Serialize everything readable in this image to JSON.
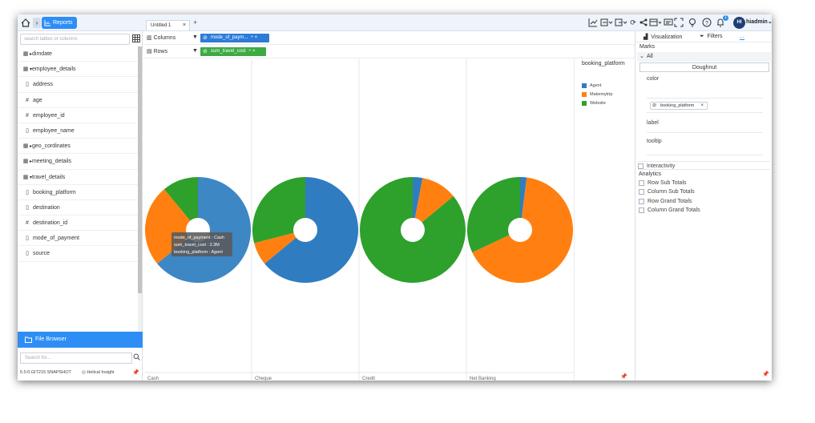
{
  "topbar": {
    "reports_label": "Reports",
    "tab_label": "Untitled 1",
    "tab_close": "×",
    "tab_add": "+",
    "user_initials": "HI",
    "user_name": "hiadmin",
    "notification_count": "1"
  },
  "left": {
    "search_placeholder": "search tables or columns",
    "items": [
      {
        "icon": "table-icon",
        "label": "dimdate",
        "child": false
      },
      {
        "icon": "table-icon",
        "label": "employee_details",
        "child": false
      },
      {
        "icon": "text-icon",
        "label": "address",
        "child": true
      },
      {
        "icon": "hash-icon",
        "label": "age",
        "child": true
      },
      {
        "icon": "hash-icon",
        "label": "employee_id",
        "child": true
      },
      {
        "icon": "text-icon",
        "label": "employee_name",
        "child": true
      },
      {
        "icon": "table-icon",
        "label": "geo_cordinates",
        "child": false
      },
      {
        "icon": "table-icon",
        "label": "meeting_details",
        "child": false
      },
      {
        "icon": "table-icon",
        "label": "travel_details",
        "child": false
      },
      {
        "icon": "text-icon",
        "label": "booking_platform",
        "child": true
      },
      {
        "icon": "text-icon",
        "label": "destination",
        "child": true
      },
      {
        "icon": "hash-icon",
        "label": "destination_id",
        "child": true
      },
      {
        "icon": "text-icon",
        "label": "mode_of_payment",
        "child": true
      },
      {
        "icon": "text-icon",
        "label": "source",
        "child": true
      }
    ],
    "file_browser_label": "File Browser",
    "file_search_placeholder": "Search for...",
    "version": "5.0.0.GIT215 SNAPSHOT",
    "brand": "Helical Insight"
  },
  "shelves": {
    "columns_label": "Columns",
    "columns_pill": "mode_of_paym...",
    "rows_label": "Rows",
    "rows_pill": "sum_travel_cost"
  },
  "tooltip": {
    "line1": "mode_of_payment : Cash",
    "line2": "sum_travel_cost : 2.3M",
    "line3": "booking_platform : Agent"
  },
  "chart_data": {
    "type": "pie",
    "subtype": "doughnut",
    "categories": [
      "Cash",
      "Cheque",
      "Credit",
      "Net Banking"
    ],
    "legend_title": "booking_platform",
    "series_names": [
      "Agent",
      "Makemytrip",
      "Website"
    ],
    "colors": {
      "Agent": "#2f7dc0",
      "Makemytrip": "#ff8010",
      "Website": "#2ea02c"
    },
    "panels": [
      {
        "category": "Cash",
        "values": [
          0.64,
          0.25,
          0.11
        ]
      },
      {
        "category": "Cheque",
        "values": [
          0.64,
          0.07,
          0.29
        ]
      },
      {
        "category": "Credit",
        "values": [
          0.03,
          0.11,
          0.86
        ]
      },
      {
        "category": "Net Banking",
        "values": [
          0.02,
          0.66,
          0.32
        ]
      }
    ]
  },
  "right": {
    "tab_visualization": "Visualization",
    "tab_filters": "Filters",
    "tab_more": "...",
    "marks_label": "Marks",
    "all_label": "All",
    "chart_type": "Doughnut",
    "color_label": "color",
    "color_chip": "booking_platform",
    "label_label": "label",
    "tooltip_label": "tooltip",
    "interactivity_label": "Interactivity",
    "analytics_label": "Analytics",
    "analytics_items": [
      "Row Sub Totals",
      "Column Sub Totals",
      "Row Grand Totals",
      "Column Grand Totals"
    ]
  }
}
